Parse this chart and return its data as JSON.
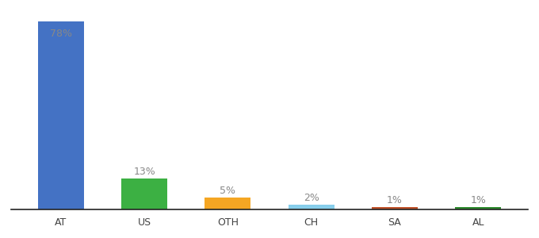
{
  "categories": [
    "AT",
    "US",
    "OTH",
    "CH",
    "SA",
    "AL"
  ],
  "values": [
    78,
    13,
    5,
    2,
    1,
    1
  ],
  "labels": [
    "78%",
    "13%",
    "5%",
    "2%",
    "1%",
    "1%"
  ],
  "bar_colors": [
    "#4472C4",
    "#3CB043",
    "#F5A623",
    "#87CEEB",
    "#C0522A",
    "#2E8B2E"
  ],
  "label_fontsize": 9,
  "tick_fontsize": 9,
  "label_color": "#888888",
  "background_color": "#ffffff",
  "ylim": [
    0,
    85
  ],
  "bar_width": 0.55
}
